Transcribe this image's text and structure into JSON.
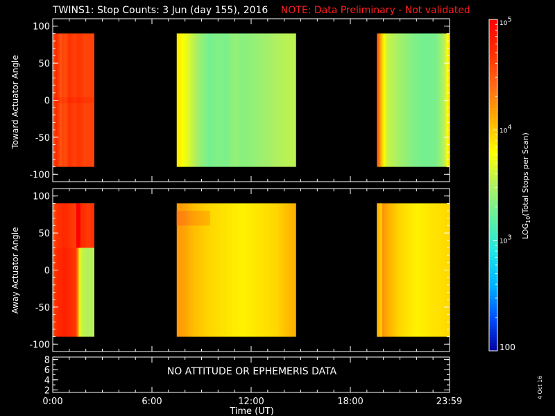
{
  "title": {
    "main": "TWINS1: Stop Counts:  3 Jun (day 155), 2016",
    "note": "NOTE: Data Preliminary - Not validated"
  },
  "colors": {
    "background": "#000000",
    "axes": "#ffffff",
    "note": "#ff1f1f",
    "colormap": [
      "#0000a0",
      "#0050ff",
      "#00b4ff",
      "#20e6e6",
      "#60f0a0",
      "#b0f060",
      "#ffff00",
      "#ffb000",
      "#ff6a1a",
      "#ff3000",
      "#ff0000"
    ]
  },
  "colorbar": {
    "label": "LOG10(Total Stops per Scan)",
    "tick_labels": [
      "100",
      "10^3",
      "10^4",
      "10^5"
    ],
    "scale": "log",
    "range": [
      100,
      100000
    ]
  },
  "footer": {
    "date_stamp": "4 Oct 16"
  },
  "chart_data": [
    {
      "type": "heatmap",
      "ylabel": "Toward Actuator Angle",
      "xlabel": "",
      "x_unit": "hours UT",
      "xlim": [
        0,
        24
      ],
      "ylim": [
        -110,
        110
      ],
      "ytick_labels": [
        "100",
        "50",
        "0",
        "-50",
        "-100"
      ],
      "y_extent": [
        -90,
        90
      ],
      "coverage": [
        [
          0,
          2.5
        ],
        [
          7.5,
          14.7
        ],
        [
          19.6,
          23.98
        ]
      ],
      "log_counts_columns": [
        [
          0.0,
          4.5
        ],
        [
          0.2,
          4.75
        ],
        [
          0.5,
          4.5
        ],
        [
          0.6,
          4.6
        ],
        [
          0.8,
          4.55
        ],
        [
          1.0,
          4.7
        ],
        [
          1.3,
          4.62
        ],
        [
          1.6,
          4.68
        ],
        [
          1.9,
          4.6
        ],
        [
          2.2,
          4.6
        ],
        [
          2.5,
          4.6
        ],
        [
          7.5,
          3.9
        ],
        [
          8.0,
          3.75
        ],
        [
          8.5,
          3.55
        ],
        [
          9.0,
          3.38
        ],
        [
          9.5,
          3.27
        ],
        [
          10.0,
          3.33
        ],
        [
          10.5,
          3.3
        ],
        [
          11.0,
          3.4
        ],
        [
          11.5,
          3.35
        ],
        [
          12.0,
          3.38
        ],
        [
          12.5,
          3.42
        ],
        [
          13.0,
          3.45
        ],
        [
          13.5,
          3.5
        ],
        [
          14.0,
          3.53
        ],
        [
          14.7,
          3.55
        ],
        [
          19.6,
          4.6
        ],
        [
          19.9,
          4.0
        ],
        [
          20.2,
          3.6
        ],
        [
          21.0,
          3.45
        ],
        [
          21.8,
          3.32
        ],
        [
          22.6,
          3.27
        ],
        [
          23.2,
          3.3
        ],
        [
          23.7,
          3.55
        ],
        [
          23.98,
          3.95
        ]
      ],
      "bands": [
        {
          "x": [
            0,
            2.5
          ],
          "y": [
            -4,
            4
          ],
          "delta": 0.06
        }
      ]
    },
    {
      "type": "heatmap",
      "ylabel": "Away Actuator Angle",
      "xlabel": "",
      "x_unit": "hours UT",
      "xlim": [
        0,
        24
      ],
      "ylim": [
        -110,
        110
      ],
      "ytick_labels": [
        "100",
        "50",
        "0",
        "-50",
        "-100"
      ],
      "y_extent": [
        -90,
        90
      ],
      "coverage": [
        [
          0,
          2.5
        ],
        [
          7.5,
          14.7
        ],
        [
          19.6,
          23.98
        ]
      ],
      "log_counts_columns": [
        [
          0.0,
          4.4
        ],
        [
          0.15,
          4.7
        ],
        [
          0.4,
          4.75
        ],
        [
          0.7,
          4.8
        ],
        [
          1.0,
          4.75
        ],
        [
          1.4,
          4.65
        ],
        [
          1.7,
          3.6
        ],
        [
          2.1,
          3.5
        ],
        [
          2.5,
          3.55
        ],
        [
          7.5,
          4.2
        ],
        [
          8.0,
          4.15
        ],
        [
          8.5,
          4.05
        ],
        [
          9.5,
          3.95
        ],
        [
          10.5,
          3.9
        ],
        [
          11.5,
          3.85
        ],
        [
          12.5,
          3.9
        ],
        [
          13.5,
          3.95
        ],
        [
          14.2,
          4.05
        ],
        [
          14.7,
          4.1
        ],
        [
          19.6,
          4.45
        ],
        [
          19.9,
          4.25
        ],
        [
          20.3,
          4.1
        ],
        [
          21.0,
          3.95
        ],
        [
          22.0,
          3.85
        ],
        [
          23.0,
          3.9
        ],
        [
          23.98,
          3.95
        ]
      ],
      "bands": [
        {
          "x": [
            1.4,
            2.5
          ],
          "y": [
            30,
            90
          ],
          "delta": 1.15
        },
        {
          "x": [
            0,
            1.4
          ],
          "y": [
            30,
            90
          ],
          "delta": -0.05
        },
        {
          "x": [
            7.5,
            9.5
          ],
          "y": [
            60,
            80
          ],
          "delta": 0.12
        },
        {
          "x": [
            19.6,
            19.9
          ],
          "y": [
            -90,
            90
          ],
          "delta": -0.3
        }
      ]
    },
    {
      "type": "line",
      "ylabel": "",
      "xlabel": "Time (UT)",
      "xlim": [
        0,
        24
      ],
      "ylim": [
        1.5,
        8.5
      ],
      "ytick_labels": [
        "8",
        "6",
        "4",
        "2"
      ],
      "xtick_labels": [
        "0:00",
        "6:00",
        "12:00",
        "18:00",
        "23:59"
      ],
      "message": "NO ATTITUDE OR EPHEMERIS DATA"
    }
  ]
}
